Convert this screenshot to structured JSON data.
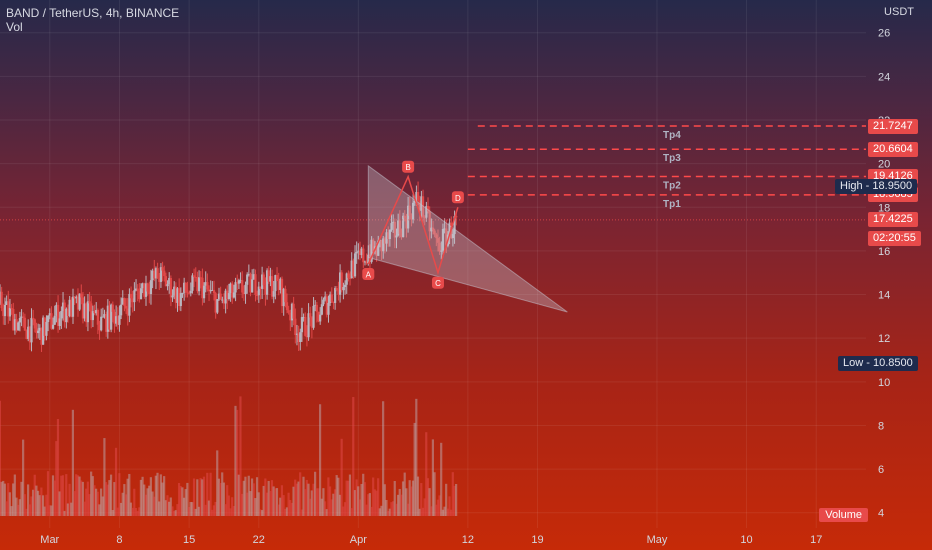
{
  "header": {
    "symbol_line": "BAND / TetherUS, 4h, BINANCE",
    "indicator": "Vol"
  },
  "price_axis": {
    "unit_label": "USDT"
  },
  "colors": {
    "up": "#b9b6bf",
    "down": "#e04848",
    "pattern_fill": "#c8c8d4",
    "pattern_line": "#e84a4a",
    "target_line": "#ff4a4a"
  },
  "chart_data": {
    "type": "candlestick",
    "title": "BAND / TetherUS, 4h, BINANCE",
    "y_ticks": [
      4,
      6,
      8,
      10,
      12,
      14,
      16,
      18,
      20,
      22,
      24,
      26
    ],
    "ylim": [
      3.3,
      27.5
    ],
    "x_ticks": [
      {
        "label": "Mar",
        "date": "2021-03-01"
      },
      {
        "label": "8",
        "date": "2021-03-08"
      },
      {
        "label": "15",
        "date": "2021-03-15"
      },
      {
        "label": "22",
        "date": "2021-03-22"
      },
      {
        "label": "Apr",
        "date": "2021-04-01"
      },
      {
        "label": "12",
        "date": "2021-04-12"
      },
      {
        "label": "19",
        "date": "2021-04-19"
      },
      {
        "label": "May",
        "date": "2021-05-01"
      },
      {
        "label": "10",
        "date": "2021-05-10"
      },
      {
        "label": "17",
        "date": "2021-05-17"
      }
    ],
    "xlim": [
      "2021-02-24",
      "2021-05-22"
    ],
    "close_path": [
      [
        "2021-02-24",
        13.6
      ],
      [
        "2021-02-26",
        12.6
      ],
      [
        "2021-02-28",
        12.2
      ],
      [
        "2021-03-02",
        13.2
      ],
      [
        "2021-03-04",
        13.5
      ],
      [
        "2021-03-06",
        12.7
      ],
      [
        "2021-03-08",
        13.2
      ],
      [
        "2021-03-10",
        14.2
      ],
      [
        "2021-03-12",
        14.9
      ],
      [
        "2021-03-14",
        13.9
      ],
      [
        "2021-03-16",
        14.5
      ],
      [
        "2021-03-18",
        13.6
      ],
      [
        "2021-03-20",
        14.2
      ],
      [
        "2021-03-22",
        14.6
      ],
      [
        "2021-03-24",
        14.4
      ],
      [
        "2021-03-26",
        12.3
      ],
      [
        "2021-03-28",
        13.1
      ],
      [
        "2021-03-30",
        14.4
      ],
      [
        "2021-04-01",
        15.6
      ],
      [
        "2021-04-03",
        16.1
      ],
      [
        "2021-04-05",
        17.0
      ],
      [
        "2021-04-07",
        18.4
      ],
      [
        "2021-04-09",
        16.2
      ],
      [
        "2021-04-11",
        17.42
      ]
    ],
    "high": "18.9500",
    "low": "10.8500",
    "last_price": "17.4225",
    "countdown": "02:20:55",
    "pattern_points": [
      {
        "label": "A",
        "date": "2021-04-02",
        "value": 15.4
      },
      {
        "label": "B",
        "date": "2021-04-06",
        "value": 19.4
      },
      {
        "label": "C",
        "date": "2021-04-09",
        "value": 15.0
      },
      {
        "label": "D",
        "date": "2021-04-11",
        "value": 18.0
      }
    ],
    "triangle": [
      [
        "2021-04-02",
        19.9
      ],
      [
        "2021-04-02",
        15.7
      ],
      [
        "2021-04-22",
        13.2
      ]
    ],
    "targets": [
      {
        "label": "Tp1",
        "value": "18.5685",
        "line_start": "2021-04-12"
      },
      {
        "label": "Tp2",
        "value": "19.4126",
        "line_start": "2021-04-12"
      },
      {
        "label": "Tp3",
        "value": "20.6604",
        "line_start": "2021-04-12"
      },
      {
        "label": "Tp4",
        "value": "21.7247",
        "line_start": "2021-04-13"
      }
    ],
    "volume_label": "Volume"
  }
}
